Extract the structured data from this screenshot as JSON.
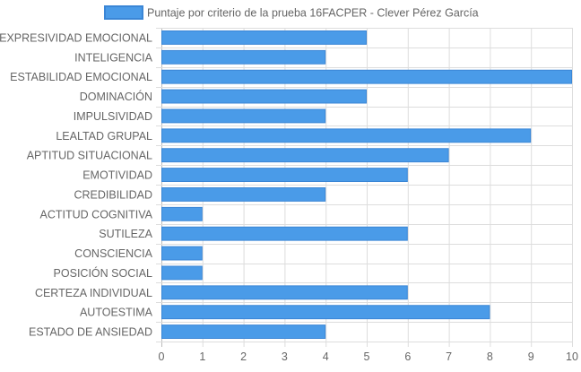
{
  "chart_data": {
    "type": "bar",
    "orientation": "horizontal",
    "categories": [
      "EXPRESIVIDAD EMOCIONAL",
      "INTELIGENCIA",
      "ESTABILIDAD EMOCIONAL",
      "DOMINACIÓN",
      "IMPULSIVIDAD",
      "LEALTAD GRUPAL",
      "APTITUD SITUACIONAL",
      "EMOTIVIDAD",
      "CREDIBILIDAD",
      "ACTITUD COGNITIVA",
      "SUTILEZA",
      "CONSCIENCIA",
      "POSICIÓN SOCIAL",
      "CERTEZA INDIVIDUAL",
      "AUTOESTIMA",
      "ESTADO DE ANSIEDAD"
    ],
    "series": [
      {
        "name": "Puntaje por criterio de la prueba 16FACPER - Clever Pérez García",
        "values": [
          5,
          4,
          10,
          5,
          4,
          9,
          7,
          6,
          4,
          1,
          6,
          1,
          1,
          6,
          8,
          4
        ]
      }
    ],
    "xlim": [
      0,
      10
    ],
    "xticks": [
      "0",
      "1",
      "2",
      "3",
      "4",
      "5",
      "6",
      "7",
      "8",
      "9",
      "10"
    ],
    "grid": true,
    "legend_position": "top-center",
    "colors": {
      "bar_fill": "#4a9be8",
      "bar_stroke": "#3a86d6",
      "grid": "#dddddd",
      "text": "#666666"
    }
  }
}
